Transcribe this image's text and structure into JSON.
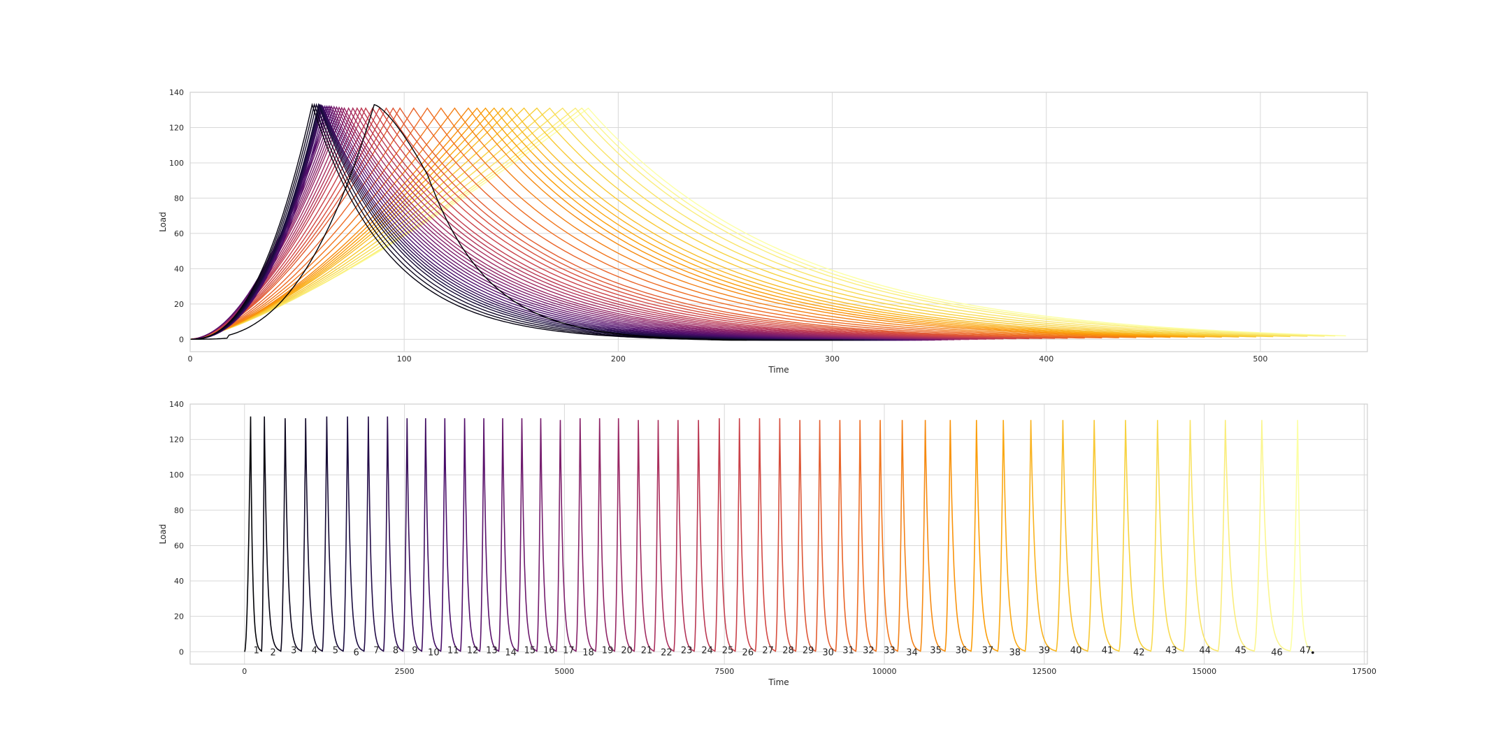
{
  "chart_data": [
    {
      "type": "line",
      "xlabel": "Time",
      "ylabel": "Load",
      "xlim": [
        0,
        550
      ],
      "ylim": [
        -7,
        140
      ],
      "xticks": [
        0,
        100,
        200,
        300,
        400,
        500
      ],
      "yticks": [
        0,
        20,
        40,
        60,
        80,
        100,
        120,
        140
      ],
      "grid": true,
      "legend": "none",
      "colormap": "inferno",
      "series_count": 47,
      "series_ordering": "cycle number 1..47 mapped along colormap (black to pale yellow)",
      "series": [
        {
          "name": "1",
          "color": "#000004",
          "peak_time": 86,
          "peak_load": 133,
          "end_time": 260
        },
        {
          "name": "2",
          "color": "#0a0722",
          "peak_time": 57,
          "peak_load": 133,
          "end_time": 300
        },
        {
          "name": "3",
          "color": "#1b0c41",
          "peak_time": 58,
          "peak_load": 133,
          "end_time": 305
        },
        {
          "name": "4",
          "color": "#2f0a5b",
          "peak_time": 59,
          "peak_load": 133,
          "end_time": 310
        },
        {
          "name": "5",
          "color": "#420a68",
          "peak_time": 60,
          "peak_load": 133,
          "end_time": 315
        },
        {
          "name": "10",
          "color": "#6a176e",
          "peak_time": 62,
          "peak_load": 132,
          "end_time": 330
        },
        {
          "name": "15",
          "color": "#932667",
          "peak_time": 66,
          "peak_load": 132,
          "end_time": 345
        },
        {
          "name": "20",
          "color": "#bc3754",
          "peak_time": 72,
          "peak_load": 131,
          "end_time": 360
        },
        {
          "name": "25",
          "color": "#dd513a",
          "peak_time": 82,
          "peak_load": 131,
          "end_time": 380
        },
        {
          "name": "30",
          "color": "#f37819",
          "peak_time": 98,
          "peak_load": 131,
          "end_time": 410
        },
        {
          "name": "35",
          "color": "#fca50a",
          "peak_time": 130,
          "peak_load": 131,
          "end_time": 450
        },
        {
          "name": "40",
          "color": "#f6d746",
          "peak_time": 150,
          "peak_load": 131,
          "end_time": 490
        },
        {
          "name": "45",
          "color": "#f2f27d",
          "peak_time": 180,
          "peak_load": 131,
          "end_time": 530
        },
        {
          "name": "47",
          "color": "#fcffa4",
          "peak_time": 186,
          "peak_load": 131,
          "end_time": 540
        }
      ]
    },
    {
      "type": "line",
      "xlabel": "Time",
      "ylabel": "Load",
      "xlim": [
        -850,
        17550
      ],
      "ylim": [
        -7,
        140
      ],
      "xticks": [
        0,
        2500,
        5000,
        7500,
        10000,
        12500,
        15000,
        17500
      ],
      "yticks": [
        0,
        20,
        40,
        60,
        80,
        100,
        120,
        140
      ],
      "grid": true,
      "legend": "none",
      "colormap": "inferno",
      "annotations": [
        "1",
        "2",
        "3",
        "4",
        "5",
        "6",
        "7",
        "8",
        "9",
        "10",
        "11",
        "12",
        "13",
        "14",
        "15",
        "16",
        "17",
        "18",
        "19",
        "20",
        "21",
        "22",
        "23",
        "24",
        "25",
        "26",
        "27",
        "28",
        "29",
        "30",
        "31",
        "32",
        "33",
        "34",
        "35",
        "36",
        "37",
        "38",
        "39",
        "40",
        "41",
        "42",
        "43",
        "44",
        "45",
        "46",
        "47"
      ],
      "cycle_peak_times": [
        95,
        310,
        635,
        955,
        1285,
        1610,
        1935,
        2235,
        2540,
        2830,
        3130,
        3440,
        3740,
        4035,
        4335,
        4630,
        4935,
        5245,
        5550,
        5845,
        6155,
        6465,
        6775,
        7095,
        7420,
        7735,
        8050,
        8365,
        8680,
        8990,
        9305,
        9620,
        9935,
        10280,
        10640,
        11030,
        11440,
        11860,
        12290,
        12790,
        13280,
        13770,
        14270,
        14780,
        15330,
        15900,
        16460
      ],
      "cycle_peak_loads": [
        133,
        133,
        132,
        132,
        133,
        133,
        133,
        133,
        132,
        132,
        132,
        132,
        132,
        132,
        132,
        132,
        131,
        132,
        132,
        132,
        131,
        131,
        131,
        131,
        132,
        132,
        132,
        132,
        131,
        131,
        131,
        131,
        131,
        131,
        131,
        131,
        131,
        131,
        131,
        131,
        131,
        131,
        131,
        131,
        131,
        131,
        131
      ]
    }
  ]
}
